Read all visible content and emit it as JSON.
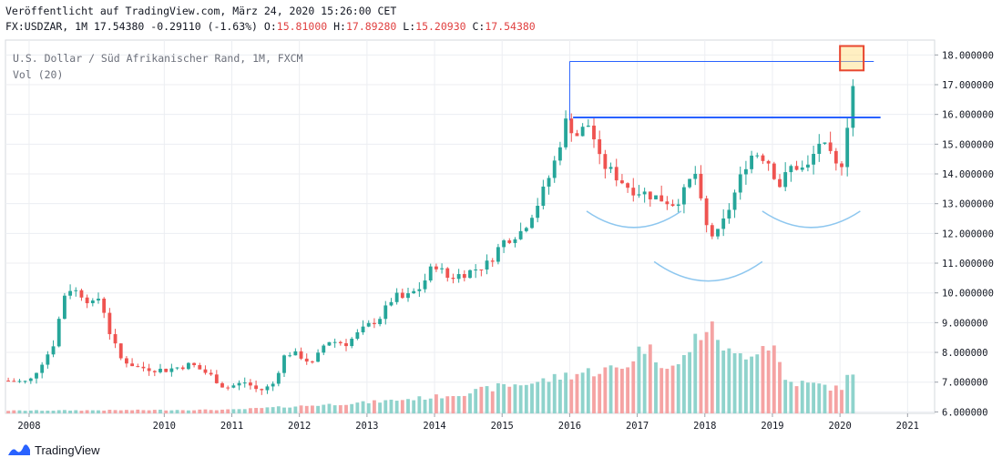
{
  "header": {
    "published": "Veröffentlicht auf TradingView.com, März 24, 2020 15:26:00 CET",
    "symbol": "FX:USDZAR, 1M",
    "last": "17.54380",
    "change": "-0.29110 (-1.63%)",
    "o_label": "O:",
    "o_val": "15.81000",
    "h_label": "H:",
    "h_val": "17.89280",
    "l_label": "L:",
    "l_val": "15.20930",
    "c_label": "C:",
    "c_val": "17.54380"
  },
  "legend": {
    "title": "U.S. Dollar / Süd Afrikanischer Rand, 1M, FXCM",
    "vol": "Vol (20)"
  },
  "footer": {
    "brand": "TradingView"
  },
  "colors": {
    "up": "#26a69a",
    "down": "#ef5350",
    "vol_up": "#8fd3cc",
    "vol_down": "#f5a3a3",
    "level": "#2962ff",
    "arc": "#8ec7ef"
  },
  "chart_data": {
    "type": "candlestick",
    "title": "U.S. Dollar / Süd Afrikanischer Rand, 1M, FXCM",
    "y_axis": {
      "ticks": [
        "18.000000",
        "17.000000",
        "16.000000",
        "15.000000",
        "14.000000",
        "13.000000",
        "12.000000",
        "11.000000",
        "10.000000",
        "9.000000",
        "8.000000",
        "7.000000",
        "6.000000"
      ],
      "range": [
        5.95,
        18.5
      ]
    },
    "x_axis": {
      "ticks": [
        "2008",
        "2010",
        "2011",
        "2012",
        "2013",
        "2014",
        "2015",
        "2016",
        "2017",
        "2018",
        "2019",
        "2020",
        "2021"
      ],
      "range": [
        2007.65,
        2021.4
      ]
    },
    "close_anchors": [
      [
        2007.65,
        7.05
      ],
      [
        2008.0,
        7.0
      ],
      [
        2008.2,
        7.7
      ],
      [
        2008.35,
        8.2
      ],
      [
        2008.55,
        10.2
      ],
      [
        2008.75,
        10.0
      ],
      [
        2008.95,
        9.6
      ],
      [
        2009.05,
        9.9
      ],
      [
        2009.2,
        8.6
      ],
      [
        2009.35,
        7.8
      ],
      [
        2009.6,
        7.5
      ],
      [
        2010.0,
        7.4
      ],
      [
        2010.4,
        7.6
      ],
      [
        2010.7,
        7.2
      ],
      [
        2010.9,
        6.8
      ],
      [
        2011.2,
        7.0
      ],
      [
        2011.4,
        6.7
      ],
      [
        2011.6,
        6.9
      ],
      [
        2011.8,
        8.0
      ],
      [
        2012.0,
        7.9
      ],
      [
        2012.2,
        7.6
      ],
      [
        2012.4,
        8.4
      ],
      [
        2012.7,
        8.3
      ],
      [
        2012.9,
        8.7
      ],
      [
        2013.2,
        9.2
      ],
      [
        2013.4,
        9.9
      ],
      [
        2013.55,
        9.8
      ],
      [
        2013.8,
        10.2
      ],
      [
        2014.0,
        11.0
      ],
      [
        2014.2,
        10.5
      ],
      [
        2014.5,
        10.7
      ],
      [
        2014.8,
        11.0
      ],
      [
        2015.0,
        11.7
      ],
      [
        2015.3,
        12.1
      ],
      [
        2015.55,
        13.1
      ],
      [
        2015.75,
        14.2
      ],
      [
        2015.95,
        15.8
      ],
      [
        2016.1,
        15.3
      ],
      [
        2016.3,
        15.7
      ],
      [
        2016.45,
        14.4
      ],
      [
        2016.7,
        13.9
      ],
      [
        2016.9,
        13.5
      ],
      [
        2017.05,
        13.4
      ],
      [
        2017.3,
        13.2
      ],
      [
        2017.55,
        13.0
      ],
      [
        2017.7,
        13.4
      ],
      [
        2017.85,
        14.1
      ],
      [
        2018.0,
        12.3
      ],
      [
        2018.15,
        11.8
      ],
      [
        2018.3,
        12.5
      ],
      [
        2018.5,
        13.7
      ],
      [
        2018.65,
        14.6
      ],
      [
        2018.8,
        14.7
      ],
      [
        2018.95,
        14.4
      ],
      [
        2019.1,
        13.6
      ],
      [
        2019.3,
        14.3
      ],
      [
        2019.5,
        14.1
      ],
      [
        2019.7,
        15.1
      ],
      [
        2019.85,
        14.6
      ],
      [
        2020.0,
        14.0
      ],
      [
        2020.1,
        15.6
      ],
      [
        2020.23,
        17.54
      ]
    ],
    "volume_anchors": [
      [
        2007.65,
        0.3
      ],
      [
        2011.0,
        0.4
      ],
      [
        2012.0,
        0.8
      ],
      [
        2013.0,
        1.2
      ],
      [
        2014.0,
        1.8
      ],
      [
        2014.6,
        2.4
      ],
      [
        2015.0,
        3.0
      ],
      [
        2015.5,
        3.4
      ],
      [
        2015.95,
        4.2
      ],
      [
        2016.3,
        4.6
      ],
      [
        2016.8,
        5.0
      ],
      [
        2017.1,
        7.5
      ],
      [
        2017.3,
        6.0
      ],
      [
        2017.6,
        5.0
      ],
      [
        2017.85,
        8.0
      ],
      [
        2018.0,
        9.5
      ],
      [
        2018.2,
        8.5
      ],
      [
        2018.4,
        6.0
      ],
      [
        2018.7,
        7.0
      ],
      [
        2019.0,
        7.8
      ],
      [
        2019.2,
        3.5
      ],
      [
        2019.8,
        3.0
      ],
      [
        2020.0,
        2.6
      ],
      [
        2020.23,
        5.3
      ]
    ],
    "volume_max": 10,
    "annotations": {
      "upper_level": {
        "x": [
          2016.0,
          2020.5
        ],
        "y": 17.78,
        "vertical_from": 15.8
      },
      "neckline": {
        "x": [
          2016.05,
          2020.6
        ],
        "y": 15.9
      },
      "highlight_box": {
        "x": [
          2020.0,
          2020.35
        ],
        "y": [
          17.48,
          18.3
        ]
      },
      "arcs": [
        {
          "x": [
            2016.25,
            2017.65
          ],
          "depth": 0.55,
          "base": 12.75
        },
        {
          "x": [
            2017.25,
            2018.85
          ],
          "depth": 0.65,
          "base": 11.05
        },
        {
          "x": [
            2018.85,
            2020.3
          ],
          "depth": 0.55,
          "base": 12.75
        }
      ]
    }
  }
}
